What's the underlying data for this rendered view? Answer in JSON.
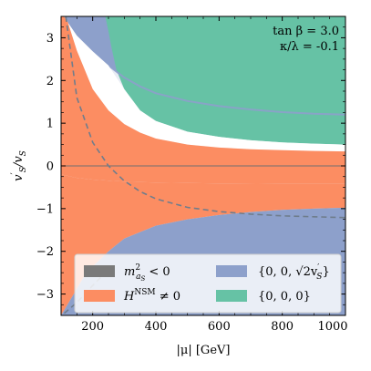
{
  "chart_data": {
    "type": "area",
    "xlabel": "|μ| [GeV]",
    "ylabel_main": "v",
    "ylabel_prime": "′",
    "ylabel_sub1": "S",
    "ylabel_slash": "/v",
    "ylabel_sub2": "S",
    "xlim": [
      100,
      1000
    ],
    "ylim": [
      -3.5,
      3.5
    ],
    "xticks": [
      200,
      400,
      600,
      800,
      1000
    ],
    "yticks": [
      -3,
      -2,
      -1,
      0,
      1,
      2,
      3
    ],
    "xtick_labels": [
      "200",
      "400",
      "600",
      "800",
      "1000"
    ],
    "ytick_labels": [
      "−3",
      "−2",
      "−1",
      "0",
      "1",
      "2",
      "3"
    ],
    "annotation_line1": "tan β = 3.0",
    "annotation_line2": "κ/λ = -0.1",
    "colors": {
      "tachyonic": "#7a7a7a",
      "nsm_nonzero": "#fc8d62",
      "sqrt2_min": "#8da0cb",
      "trivial_min": "#66c2a5",
      "background": "#e8ecf4",
      "dashed": "#6f7d8c",
      "zero_line": "#707070"
    },
    "legend": {
      "placement": "lower-center",
      "entries": [
        {
          "key": "tachyonic",
          "label_main": "m",
          "label_sup": "2",
          "label_sub": "a",
          "label_sub2": "S",
          "label_tail": " < 0"
        },
        {
          "key": "nsm_nonzero",
          "label_main": "H",
          "label_sup": "NSM",
          "label_tail": " ≠ 0"
        },
        {
          "key": "sqrt2_min",
          "label_main": "{0, 0, √2v",
          "label_sup": "′",
          "label_sub": "S",
          "label_tail": "}"
        },
        {
          "key": "trivial_min",
          "label_main": "{0, 0, 0}"
        }
      ]
    },
    "regions": {
      "nsm_nonzero_upper": [
        [
          108,
          3.5
        ],
        [
          120,
          3.4
        ],
        [
          150,
          2.7
        ],
        [
          200,
          1.8
        ],
        [
          250,
          1.3
        ],
        [
          300,
          0.98
        ],
        [
          350,
          0.78
        ],
        [
          400,
          0.64
        ],
        [
          500,
          0.5
        ],
        [
          600,
          0.43
        ],
        [
          700,
          0.39
        ],
        [
          800,
          0.37
        ],
        [
          900,
          0.35
        ],
        [
          1000,
          0.34
        ]
      ],
      "nsm_nonzero_lower_boundary": [
        [
          100,
          -0.2
        ],
        [
          150,
          -0.28
        ],
        [
          200,
          -0.32
        ],
        [
          300,
          -0.37
        ],
        [
          400,
          -0.39
        ],
        [
          500,
          -0.4
        ],
        [
          600,
          -0.41
        ],
        [
          800,
          -0.42
        ],
        [
          1000,
          -0.42
        ]
      ],
      "sqrt2_lower_top": [
        [
          100,
          -3.5
        ],
        [
          140,
          -3.0
        ],
        [
          180,
          -2.5
        ],
        [
          250,
          -2.0
        ],
        [
          300,
          -1.7
        ],
        [
          400,
          -1.4
        ],
        [
          500,
          -1.25
        ],
        [
          600,
          -1.15
        ],
        [
          700,
          -1.08
        ],
        [
          800,
          -1.03
        ],
        [
          900,
          -1.0
        ],
        [
          1000,
          -0.98
        ]
      ],
      "sqrt2_upper_bottom": [
        [
          108,
          3.5
        ],
        [
          150,
          3.05
        ],
        [
          200,
          2.68
        ],
        [
          250,
          2.35
        ],
        [
          300,
          2.07
        ],
        [
          350,
          1.86
        ],
        [
          400,
          1.7
        ],
        [
          500,
          1.52
        ],
        [
          600,
          1.4
        ],
        [
          700,
          1.32
        ],
        [
          800,
          1.26
        ],
        [
          900,
          1.22
        ],
        [
          1000,
          1.2
        ]
      ],
      "trivial_boundary": [
        [
          240,
          3.5
        ],
        [
          250,
          3.15
        ],
        [
          260,
          2.75
        ],
        [
          275,
          2.25
        ],
        [
          300,
          1.8
        ],
        [
          350,
          1.3
        ],
        [
          400,
          1.05
        ],
        [
          500,
          0.8
        ],
        [
          600,
          0.68
        ],
        [
          700,
          0.6
        ],
        [
          800,
          0.55
        ],
        [
          900,
          0.52
        ],
        [
          1000,
          0.5
        ]
      ],
      "inner_boundary_faint": [
        [
          250,
          2.35
        ],
        [
          300,
          2.07
        ],
        [
          350,
          1.86
        ],
        [
          400,
          1.7
        ],
        [
          500,
          1.52
        ],
        [
          600,
          1.4
        ],
        [
          700,
          1.32
        ],
        [
          800,
          1.26
        ],
        [
          900,
          1.22
        ],
        [
          1000,
          1.2
        ]
      ],
      "dashed_curve": [
        [
          115,
          3.5
        ],
        [
          150,
          1.6
        ],
        [
          200,
          0.55
        ],
        [
          250,
          0.0
        ],
        [
          300,
          -0.35
        ],
        [
          350,
          -0.6
        ],
        [
          400,
          -0.77
        ],
        [
          500,
          -0.97
        ],
        [
          600,
          -1.07
        ],
        [
          700,
          -1.13
        ],
        [
          800,
          -1.17
        ],
        [
          900,
          -1.19
        ],
        [
          1000,
          -1.21
        ]
      ],
      "dashed_lower": [
        [
          110,
          -3.45
        ],
        [
          150,
          -3.2
        ],
        [
          200,
          -2.8
        ],
        [
          240,
          -2.5
        ]
      ]
    }
  }
}
